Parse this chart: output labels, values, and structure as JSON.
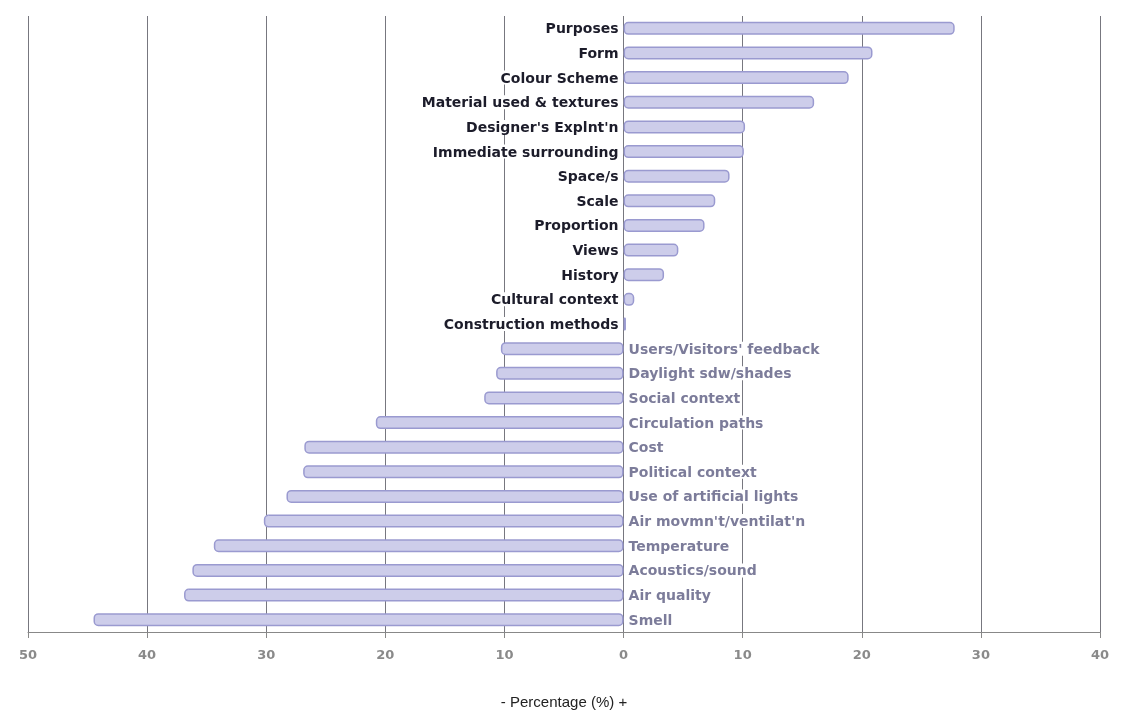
{
  "chart_data": {
    "type": "bar",
    "orientation": "horizontal",
    "xlabel": "- Percentage (%) +",
    "categories": [
      "Purposes",
      "Form",
      "Colour Scheme",
      "Material used & textures",
      "Designer's Explnt'n",
      "Immediate surrounding",
      "Space/s",
      "Scale",
      "Proportion",
      "Views",
      "History",
      "Cultural context",
      "Construction methods",
      "Users/Visitors' feedback",
      "Daylight sdw/shades",
      "Social context",
      "Circulation paths",
      "Cost",
      "Political context",
      "Use of artificial lights",
      "Air movmn't/ventilat'n",
      "Temperature",
      "Acoustics/sound",
      "Air quality",
      "Smell"
    ],
    "values": [
      27.8,
      20.9,
      18.9,
      16.0,
      10.2,
      10.1,
      8.9,
      7.7,
      6.8,
      4.6,
      3.4,
      0.9,
      0.2,
      -10.3,
      -10.7,
      -11.7,
      -20.8,
      -26.8,
      -26.9,
      -28.3,
      -30.2,
      -34.4,
      -36.2,
      -36.9,
      -44.5
    ],
    "color": "#cdcdea",
    "xlim": [
      -50,
      40
    ],
    "xticks": [
      {
        "value": -50,
        "label": "50"
      },
      {
        "value": -40,
        "label": "40"
      },
      {
        "value": -30,
        "label": "30"
      },
      {
        "value": -20,
        "label": "20"
      },
      {
        "value": -10,
        "label": "10"
      },
      0,
      10,
      20,
      30,
      40
    ],
    "grid": "x"
  }
}
